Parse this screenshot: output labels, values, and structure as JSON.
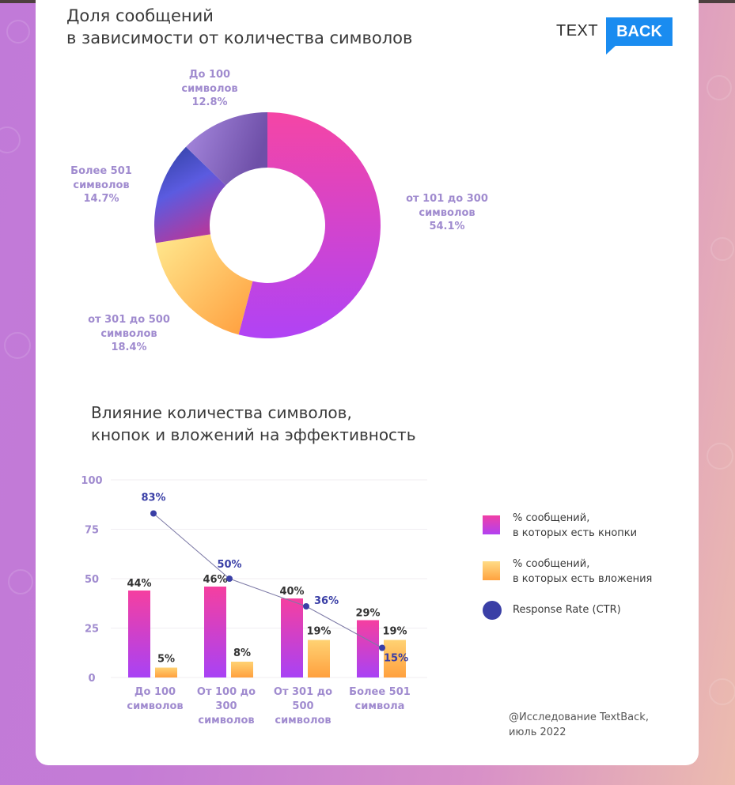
{
  "brand": {
    "logo_left": "TEXT",
    "logo_right": "BACK",
    "accent": "#1a8cf0"
  },
  "pie_section": {
    "title_lines": [
      "Доля сообщений",
      "в зависимости от количества символов"
    ]
  },
  "bar_section": {
    "title_lines": [
      "Влияние количества символов,",
      "кнопок и вложений на эффективность"
    ]
  },
  "legend": [
    {
      "lines": [
        "% сообщений,",
        "в которых есть кнопки"
      ],
      "type": "swatch",
      "colors": [
        "#f03fa6",
        "#b141f2"
      ]
    },
    {
      "lines": [
        "% сообщений,",
        "в которых есть вложения"
      ],
      "type": "swatch",
      "colors": [
        "#ffdc86",
        "#ffa23f"
      ]
    },
    {
      "lines": [
        "Response Rate (CTR)"
      ],
      "type": "dot",
      "colors": [
        "#3a3fa6"
      ]
    }
  ],
  "credit": {
    "lines": [
      "@Исследование TextBack,",
      "июль 2022"
    ]
  },
  "chart_data": [
    {
      "type": "pie",
      "variant": "donut",
      "title": "Доля сообщений в зависимости от количества символов",
      "slices": [
        {
          "label_lines": [
            "от 101 до 300",
            "символов"
          ],
          "value": 54.1,
          "value_label": "54.1%",
          "colors": [
            "#f545a5",
            "#b043f5"
          ]
        },
        {
          "label_lines": [
            "от 301 до 500",
            "символов"
          ],
          "value": 18.4,
          "value_label": "18.4%",
          "colors": [
            "#ffe98f",
            "#ff9d3c"
          ]
        },
        {
          "label_lines": [
            "Более 501",
            "символов"
          ],
          "value": 14.7,
          "value_label": "14.7%",
          "colors": [
            "#2e3f9e",
            "#5b5be0",
            "#b03aa0"
          ]
        },
        {
          "label_lines": [
            "До 100",
            "символов"
          ],
          "value": 12.8,
          "value_label": "12.8%",
          "colors": [
            "#a88ae0",
            "#6e4fa8"
          ]
        }
      ]
    },
    {
      "type": "bar",
      "title": "Влияние количества символов, кнопок и вложений на эффективность",
      "categories": [
        [
          "До 100",
          "символов"
        ],
        [
          "От 100 до",
          "300",
          "символов"
        ],
        [
          "От 301 до",
          "500",
          "символов"
        ],
        [
          "Более 501",
          "символа"
        ]
      ],
      "ylim": [
        0,
        100
      ],
      "yticks": [
        "0",
        "25",
        "50",
        "75",
        "100"
      ],
      "ytick_values": [
        0,
        25,
        50,
        75,
        100
      ],
      "grid": true,
      "legend_position": "right",
      "series": [
        {
          "name": "% сообщений, в которых есть кнопки",
          "kind": "bar",
          "values": [
            44,
            46,
            40,
            29
          ],
          "labels": [
            "44%",
            "46%",
            "40%",
            "29%"
          ],
          "colors": [
            "#f53fa0",
            "#a842f5"
          ]
        },
        {
          "name": "% сообщений, в которых есть вложения",
          "kind": "bar",
          "values": [
            5,
            8,
            19,
            19
          ],
          "labels": [
            "5%",
            "8%",
            "19%",
            "19%"
          ],
          "colors": [
            "#ffd273",
            "#ffa03e"
          ]
        },
        {
          "name": "Response Rate (CTR)",
          "kind": "line",
          "values": [
            83,
            50,
            36,
            15
          ],
          "labels": [
            "83%",
            "50%",
            "36%",
            "15%"
          ],
          "colors": [
            "#3a3fa6"
          ]
        }
      ]
    }
  ]
}
